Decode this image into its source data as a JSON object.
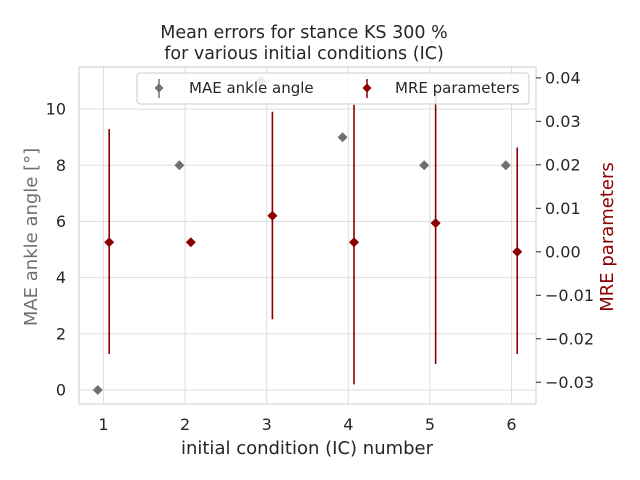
{
  "chart_data": {
    "type": "scatter",
    "title_line1": "Mean errors for  stance KS 300 %",
    "title_line2": "for various initial conditions (IC)",
    "xlabel": "initial condition (IC) number",
    "ylabel_left": "MAE ankle angle [°]",
    "ylabel_right": "MRE parameters",
    "x_ticks": [
      "1",
      "2",
      "3",
      "4",
      "5",
      "6"
    ],
    "y_left_ticks": [
      "0",
      "2",
      "4",
      "6",
      "8",
      "10"
    ],
    "y_right_ticks": [
      "0.04",
      "0.03",
      "0.02",
      "0.01",
      "0.00",
      "−0.01",
      "−0.02",
      "−0.03"
    ],
    "xlim": [
      0.7,
      6.3
    ],
    "ylim_left": [
      -0.5,
      11.5
    ],
    "ylim_right": [
      -0.035,
      0.0425
    ],
    "grid": true,
    "legend_position": "top",
    "colors": {
      "mae": "#707070",
      "mre": "#8b0000"
    },
    "series": [
      {
        "name": "MAE ankle angle",
        "axis": "left",
        "marker": "diamond",
        "x": [
          0.93,
          1.93,
          2.93,
          3.93,
          4.93,
          5.93
        ],
        "y": [
          0,
          8,
          11,
          9,
          8,
          8
        ]
      },
      {
        "name": "MRE parameters",
        "axis": "right",
        "marker": "diamond",
        "x": [
          1.07,
          2.07,
          3.07,
          4.07,
          5.07,
          6.07
        ],
        "y": [
          0.0022,
          0.0022,
          0.0083,
          0.0022,
          0.0066,
          0.0
        ],
        "err_low": [
          -0.0235,
          0.0022,
          -0.0155,
          -0.0305,
          -0.0258,
          -0.0235
        ],
        "err_high": [
          0.0282,
          0.0022,
          0.0322,
          0.0338,
          0.037,
          0.024
        ]
      }
    ]
  }
}
